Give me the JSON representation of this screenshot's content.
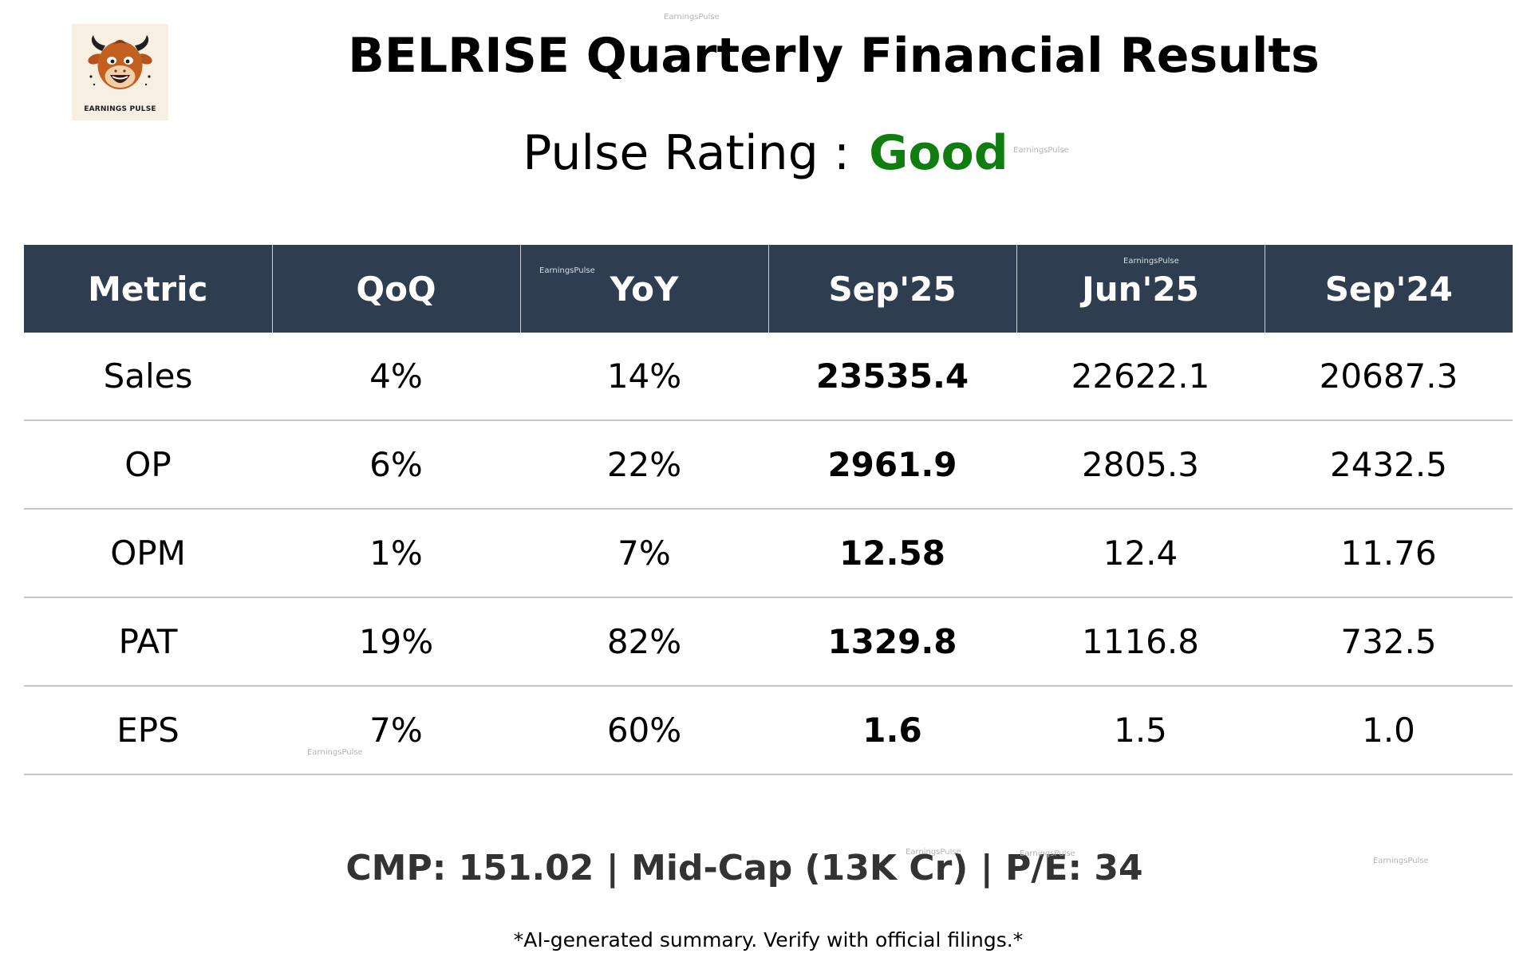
{
  "logo": {
    "text": "EARNINGS PULSE",
    "icon": "bull-mascot-icon"
  },
  "title": "BELRISE Quarterly Financial Results",
  "rating": {
    "label": "Pulse Rating :",
    "value": "Good",
    "value_color": "#0f7d0f"
  },
  "table": {
    "headers": [
      "Metric",
      "QoQ",
      "YoY",
      "Sep'25",
      "Jun'25",
      "Sep'24"
    ],
    "rows": [
      {
        "metric": "Sales",
        "qoq": "4%",
        "yoy": "14%",
        "sep25": "23535.4",
        "jun25": "22622.1",
        "sep24": "20687.3"
      },
      {
        "metric": "OP",
        "qoq": "6%",
        "yoy": "22%",
        "sep25": "2961.9",
        "jun25": "2805.3",
        "sep24": "2432.5"
      },
      {
        "metric": "OPM",
        "qoq": "1%",
        "yoy": "7%",
        "sep25": "12.58",
        "jun25": "12.4",
        "sep24": "11.76"
      },
      {
        "metric": "PAT",
        "qoq": "19%",
        "yoy": "82%",
        "sep25": "1329.8",
        "jun25": "1116.8",
        "sep24": "732.5"
      },
      {
        "metric": "EPS",
        "qoq": "7%",
        "yoy": "60%",
        "sep25": "1.6",
        "jun25": "1.5",
        "sep24": "1.0"
      }
    ],
    "header_bg": "#2e3e50",
    "positive_color": "#0f7d0f",
    "neutral_color": "#5a5a5a"
  },
  "footer": {
    "cmp_line": "CMP: 151.02 | Mid-Cap (13K Cr) | P/E: 34",
    "disclaimer": "*AI-generated summary. Verify with official filings.*"
  },
  "watermark": "EarningsPulse"
}
